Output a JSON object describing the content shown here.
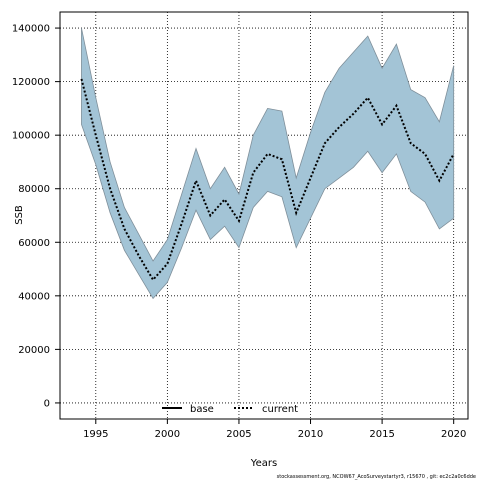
{
  "chart_data": {
    "type": "area",
    "title": "",
    "xlabel": "Years",
    "ylabel": "SSB",
    "xlim": [
      1992.5,
      2021
    ],
    "ylim": [
      -6000,
      146000
    ],
    "xticks": [
      1995,
      2000,
      2005,
      2010,
      2015,
      2020
    ],
    "yticks": [
      0,
      20000,
      40000,
      60000,
      80000,
      100000,
      120000,
      140000
    ],
    "grid": true,
    "legend_position": "bottom-center",
    "colors": {
      "band_fill": "#a3c4d6",
      "band_edge": "#7f8f9a",
      "line": "#000000"
    },
    "x": [
      1994,
      1995,
      1996,
      1997,
      1998,
      1999,
      2000,
      2001,
      2002,
      2003,
      2004,
      2005,
      2006,
      2007,
      2008,
      2009,
      2010,
      2011,
      2012,
      2013,
      2014,
      2015,
      2016,
      2017,
      2018,
      2019,
      2020
    ],
    "series": [
      {
        "name": "base",
        "style": "solid",
        "values": [
          121000,
          100000,
          80000,
          65000,
          55000,
          46000,
          52000,
          67000,
          83000,
          70000,
          76000,
          68000,
          86000,
          93000,
          91000,
          71000,
          84000,
          97000,
          103000,
          108000,
          114000,
          104000,
          111000,
          97000,
          93000,
          83000,
          93000
        ]
      },
      {
        "name": "current",
        "style": "dotted",
        "values": [
          121000,
          100000,
          80000,
          65000,
          55000,
          46000,
          52000,
          67000,
          83000,
          70000,
          76000,
          68000,
          86000,
          93000,
          91000,
          71000,
          84000,
          97000,
          103000,
          108000,
          114000,
          104000,
          111000,
          97000,
          93000,
          83000,
          93000
        ]
      }
    ],
    "band": {
      "upper": [
        140000,
        114000,
        90000,
        73000,
        63000,
        53000,
        61000,
        78000,
        95000,
        80000,
        88000,
        78000,
        100000,
        110000,
        109000,
        84000,
        101000,
        116000,
        125000,
        131000,
        137000,
        125000,
        134000,
        117000,
        114000,
        105000,
        126000
      ],
      "lower": [
        104000,
        89000,
        71000,
        57000,
        48000,
        39000,
        45000,
        58000,
        72000,
        61000,
        66000,
        58000,
        73000,
        79000,
        77000,
        58000,
        69000,
        80000,
        84000,
        88000,
        94000,
        86000,
        93000,
        79000,
        75000,
        65000,
        69000
      ]
    }
  },
  "footer_text": "stockassessment.org, NCOW67_AcoSurveystartyr3, r15670 , git: ec2c2a0c6dde"
}
